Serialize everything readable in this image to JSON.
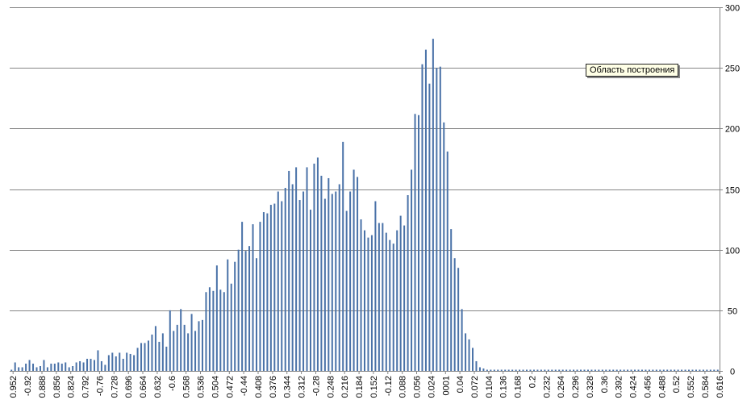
{
  "tooltip": "Область построения",
  "chart_data": {
    "type": "bar",
    "title": "",
    "xlabel": "",
    "ylabel": "",
    "ylim": [
      0,
      300
    ],
    "yticks": [
      0,
      50,
      100,
      150,
      200,
      250,
      300
    ],
    "y_axis_side": "right",
    "grid": true,
    "bar_color": "#4a72a8",
    "x_start": -0.96,
    "x_step": 0.008,
    "xtick_labels": [
      "0.952",
      "-0.92",
      "0.888",
      "0.856",
      "0.824",
      "0.792",
      "-0.76",
      "0.728",
      "0.696",
      "0.664",
      "0.632",
      "-0.6",
      "0.568",
      "0.536",
      "0.504",
      "0.472",
      "-0.44",
      "0.408",
      "0.376",
      "0.344",
      "0.312",
      "-0.28",
      "0.248",
      "0.216",
      "0.184",
      "0.152",
      "-0.12",
      "0.088",
      "0.056",
      "0.024",
      "0001",
      "0.04",
      "0.072",
      "0.104",
      "0.136",
      "0.168",
      "0.2",
      "0.232",
      "0.264",
      "0.296",
      "0.328",
      "0.36",
      "0.392",
      "0.424",
      "0.456",
      "0.488",
      "0.52",
      "0.552",
      "0.584",
      "0.616"
    ],
    "values": [
      1,
      7,
      3,
      3,
      6,
      9,
      6,
      3,
      4,
      9,
      3,
      6,
      6,
      7,
      6,
      7,
      3,
      4,
      7,
      8,
      7,
      10,
      10,
      9,
      17,
      8,
      5,
      13,
      15,
      12,
      15,
      10,
      15,
      14,
      13,
      19,
      23,
      23,
      25,
      30,
      37,
      24,
      31,
      20,
      50,
      33,
      38,
      51,
      38,
      31,
      47,
      33,
      41,
      42,
      65,
      69,
      66,
      87,
      67,
      65,
      92,
      72,
      90,
      100,
      123,
      99,
      103,
      121,
      93,
      123,
      131,
      130,
      137,
      138,
      148,
      140,
      151,
      165,
      154,
      168,
      141,
      148,
      168,
      133,
      171,
      176,
      161,
      142,
      159,
      146,
      148,
      154,
      189,
      132,
      148,
      166,
      160,
      125,
      116,
      110,
      112,
      140,
      122,
      122,
      114,
      108,
      105,
      116,
      128,
      120,
      145,
      166,
      212,
      211,
      253,
      265,
      237,
      274,
      250,
      251,
      205,
      181,
      117,
      93,
      85,
      51,
      31,
      26,
      19,
      8,
      3,
      2,
      1,
      1,
      1,
      1,
      1,
      1,
      1,
      1,
      1,
      1,
      1,
      1,
      1,
      1,
      1,
      1,
      1,
      1,
      1,
      1,
      1,
      1,
      1,
      1,
      1,
      1,
      1,
      1,
      1,
      1,
      1,
      1,
      1,
      1,
      1,
      1,
      1,
      1,
      1,
      1,
      1,
      1,
      1,
      1,
      1,
      1,
      1,
      1,
      1,
      1,
      1,
      1,
      1,
      1,
      1,
      1,
      1,
      1,
      1,
      1,
      1,
      1,
      1,
      1,
      1
    ]
  }
}
